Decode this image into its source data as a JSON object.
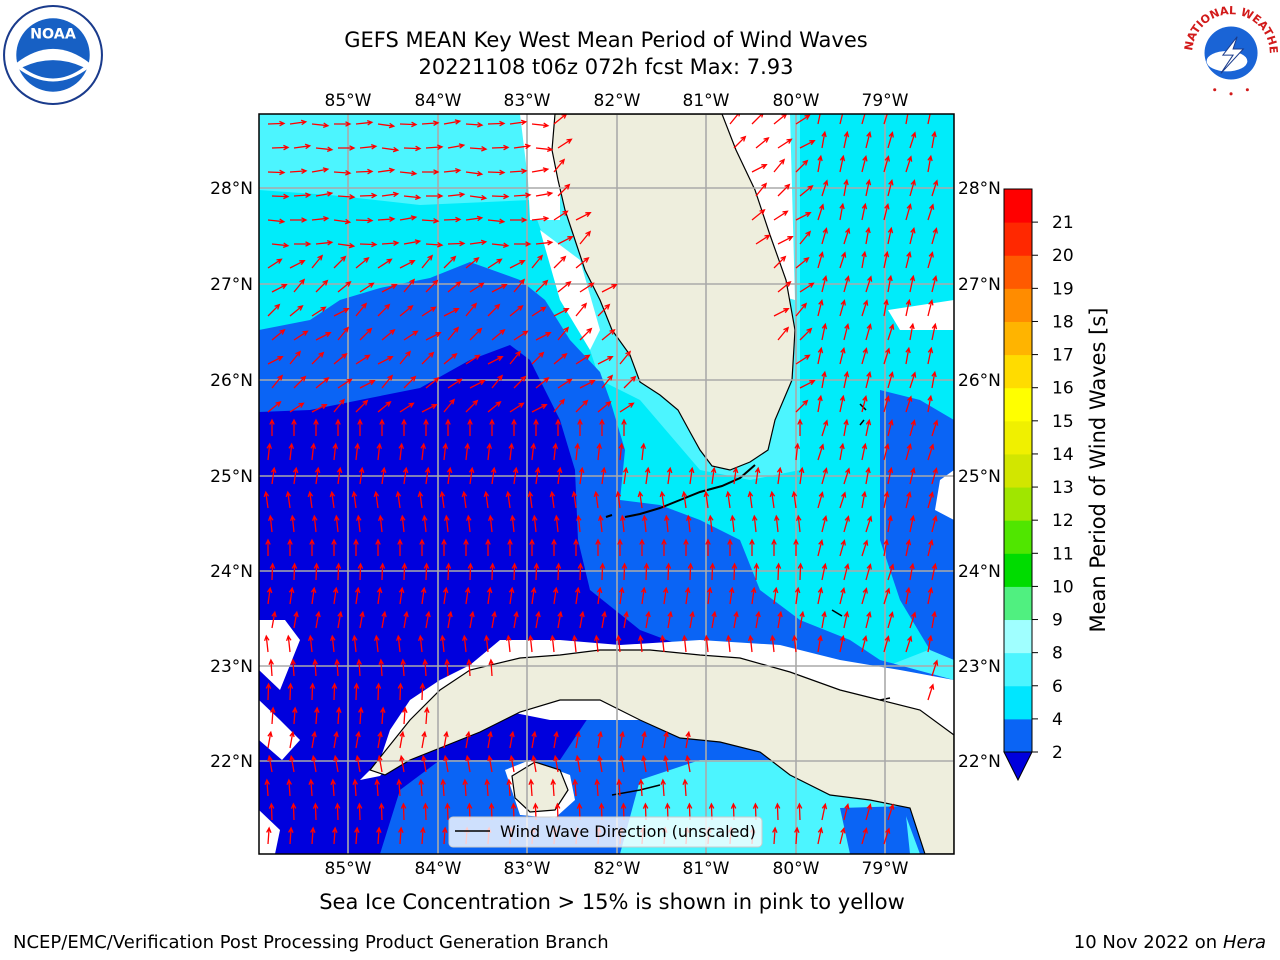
{
  "title": {
    "line1": "GEFS MEAN Key West Mean Period of Wind Waves",
    "line2": "20221108 t06z 072h fcst   Max: 7.93"
  },
  "logos": {
    "left": "noaa-logo",
    "right": "nws-logo",
    "noaa_text": "NOAA",
    "nws_text": "NATIONAL WEATHER SERVICE"
  },
  "map": {
    "lon_labels": [
      "85°W",
      "84°W",
      "83°W",
      "82°W",
      "81°W",
      "80°W",
      "79°W"
    ],
    "lat_labels": [
      "28°N",
      "27°N",
      "26°N",
      "25°N",
      "24°N",
      "23°N",
      "22°N"
    ],
    "legend_label": "Wind Wave Direction (unscaled)",
    "arrow_color": "#ff0000"
  },
  "colorbar": {
    "label": "Mean Period of Wind Waves [s]",
    "ticks": [
      "2",
      "4",
      "6",
      "8",
      "9",
      "10",
      "11",
      "12",
      "13",
      "14",
      "15",
      "16",
      "17",
      "18",
      "19",
      "20",
      "21"
    ],
    "colors": [
      "#0a64f5",
      "#00e6ff",
      "#4cf5ff",
      "#a0ffff",
      "#50f080",
      "#00dc00",
      "#50e600",
      "#a0e600",
      "#d2e600",
      "#f0f000",
      "#ffff00",
      "#ffdc00",
      "#ffb400",
      "#ff8c00",
      "#ff5a00",
      "#ff2800",
      "#ff0000"
    ]
  },
  "footer": {
    "ice_note": "Sea Ice Concentration > 15% is shown in pink to yellow",
    "credit_left": "NCEP/EMC/Verification Post Processing Product Generation Branch",
    "credit_date": "10 Nov 2022 on",
    "credit_machine": "Hera"
  },
  "colors": {
    "land": "#eeeedd",
    "deep_blue": "#0000dd",
    "mid_blue": "#0a64f5",
    "cyan": "#00ecfa",
    "light_cyan": "#4cf5ff",
    "grid": "#aaaaaa"
  }
}
